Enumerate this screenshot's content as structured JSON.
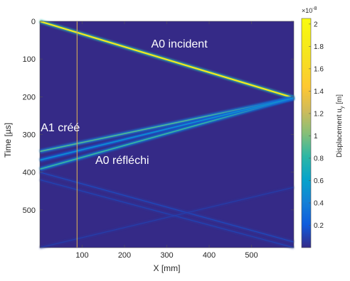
{
  "chart_data": {
    "type": "heatmap",
    "xlabel": "X [mm]",
    "ylabel": "Time [µs]",
    "x_ticks": [
      100,
      200,
      300,
      400,
      500
    ],
    "y_ticks": [
      0,
      100,
      200,
      300,
      400,
      500
    ],
    "xlim": [
      0,
      600
    ],
    "ylim": [
      600,
      0
    ],
    "y_reversed": true,
    "colorbar": {
      "label": "Displacement u",
      "label_subscript": "y",
      "label_unit": " [m]",
      "exponent_prefix": "×10",
      "exponent_value": "-8",
      "ticks": [
        "0.2",
        "0.4",
        "0.6",
        "0.8",
        "1",
        "1.2",
        "1.4",
        "1.6",
        "1.8",
        "2"
      ],
      "tick_values": [
        0.2,
        0.4,
        0.6,
        0.8,
        1.0,
        1.2,
        1.4,
        1.6,
        1.8,
        2.0
      ],
      "range": [
        0,
        2.05
      ]
    },
    "annotations": [
      {
        "text": "A0 incident"
      },
      {
        "text": "A1 créé"
      },
      {
        "text": "A0 réfléchi"
      }
    ],
    "vertical_marker_x": 88,
    "wave_paths": [
      {
        "name": "A0 incident",
        "points": [
          [
            0,
            0
          ],
          [
            600,
            203
          ]
        ],
        "amplitude": 1.8
      },
      {
        "name": "reflected A0 upper",
        "points": [
          [
            600,
            203
          ],
          [
            0,
            345
          ]
        ],
        "amplitude": 0.9
      },
      {
        "name": "reflected A0 lower",
        "points": [
          [
            600,
            203
          ],
          [
            0,
            392
          ]
        ],
        "amplitude": 0.85
      },
      {
        "name": "reflected A1",
        "points": [
          [
            600,
            203
          ],
          [
            0,
            368
          ]
        ],
        "amplitude": 0.5
      },
      {
        "name": "weak return 1",
        "points": [
          [
            0,
            400
          ],
          [
            600,
            585
          ]
        ],
        "amplitude": 0.18
      },
      {
        "name": "weak return 2",
        "points": [
          [
            0,
            420
          ],
          [
            600,
            600
          ]
        ],
        "amplitude": 0.15
      },
      {
        "name": "weak return 3",
        "points": [
          [
            600,
            440
          ],
          [
            0,
            600
          ]
        ],
        "amplitude": 0.12
      }
    ],
    "colors": {
      "background": "#352a87",
      "marker": "#c8a25c"
    }
  }
}
